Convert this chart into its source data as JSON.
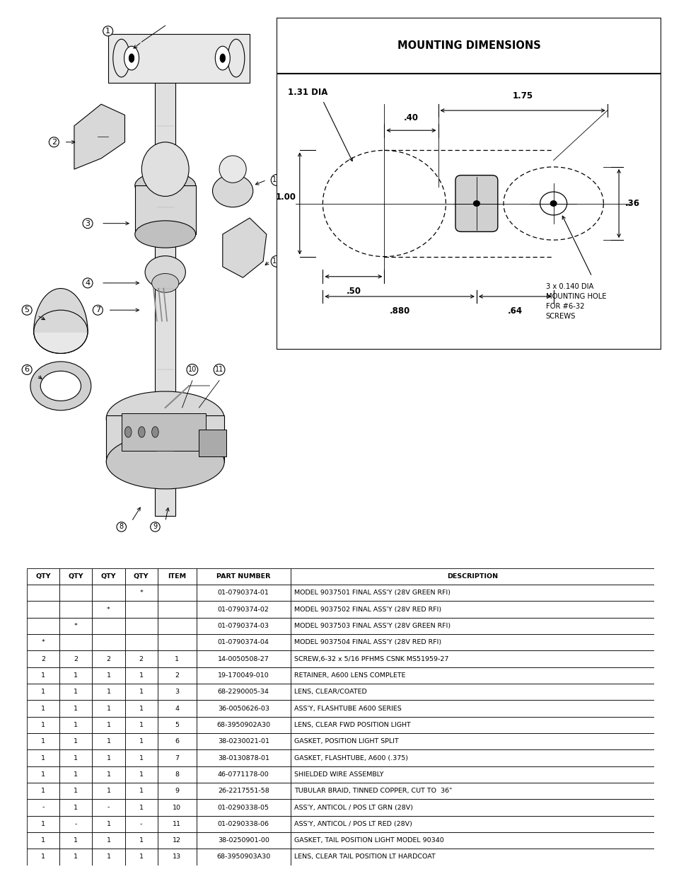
{
  "bg_color": "#ffffff",
  "title": "MOUNTING DIMENSIONS",
  "dim_title_fontsize": 10,
  "annotation_note": "3 x 0.140 DIA\nMOUNTING HOLE\nFOR #6-32\nSCREWS",
  "dims": {
    "dia_large": "1.31 DIA",
    "d1": "1.75",
    "d2": ".40",
    "d3": ".36",
    "d4": "1.00",
    "d5": ".50",
    "d6": ".880",
    "d7": ".64"
  },
  "table_headers": [
    "QTY",
    "QTY",
    "QTY",
    "QTY",
    "ITEM",
    "PART NUMBER",
    "DESCRIPTION"
  ],
  "table_rows": [
    [
      "",
      "",
      "",
      "*",
      "",
      "01-0790374-01",
      "MODEL 9037501 FINAL ASS'Y (28V GREEN RFI)"
    ],
    [
      "",
      "",
      "*",
      "",
      "",
      "01-0790374-02",
      "MODEL 9037502 FINAL ASS'Y (28V RED RFI)"
    ],
    [
      "",
      "*",
      "",
      "",
      "",
      "01-0790374-03",
      "MODEL 9037503 FINAL ASS'Y (28V GREEN RFI)"
    ],
    [
      "*",
      "",
      "",
      "",
      "",
      "01-0790374-04",
      "MODEL 9037504 FINAL ASS'Y (28V RED RFI)"
    ],
    [
      "2",
      "2",
      "2",
      "2",
      "1",
      "14-0050508-27",
      "SCREW,6-32 x 5/16 PFHMS CSNK MS51959-27"
    ],
    [
      "1",
      "1",
      "1",
      "1",
      "2",
      "19-170049-010",
      "RETAINER, A600 LENS COMPLETE"
    ],
    [
      "1",
      "1",
      "1",
      "1",
      "3",
      "68-2290005-34",
      "LENS, CLEAR/COATED"
    ],
    [
      "1",
      "1",
      "1",
      "1",
      "4",
      "36-0050626-03",
      "ASS'Y, FLASHTUBE A600 SERIES"
    ],
    [
      "1",
      "1",
      "1",
      "1",
      "5",
      "68-3950902A30",
      "LENS, CLEAR FWD POSITION LIGHT"
    ],
    [
      "1",
      "1",
      "1",
      "1",
      "6",
      "38-0230021-01",
      "GASKET, POSITION LIGHT SPLIT"
    ],
    [
      "1",
      "1",
      "1",
      "1",
      "7",
      "38-0130878-01",
      "GASKET, FLASHTUBE, A600 (.375)"
    ],
    [
      "1",
      "1",
      "1",
      "1",
      "8",
      "46-0771178-00",
      "SHIELDED WIRE ASSEMBLY"
    ],
    [
      "1",
      "1",
      "1",
      "1",
      "9",
      "26-2217551-58",
      "TUBULAR BRAID, TINNED COPPER, CUT TO  36\""
    ],
    [
      "-",
      "1",
      "-",
      "1",
      "10",
      "01-0290338-05",
      "ASS'Y, ANTICOL / POS LT GRN (28V)"
    ],
    [
      "1",
      "-",
      "1",
      "-",
      "11",
      "01-0290338-06",
      "ASS'Y, ANTICOL / POS LT RED (28V)"
    ],
    [
      "1",
      "1",
      "1",
      "1",
      "12",
      "38-0250901-00",
      "GASKET, TAIL POSITION LIGHT MODEL 90340"
    ],
    [
      "1",
      "1",
      "1",
      "1",
      "13",
      "68-3950903A30",
      "LENS, CLEAR TAIL POSITION LT HARDCOAT"
    ]
  ],
  "page_width": 9.54,
  "page_height": 12.35
}
